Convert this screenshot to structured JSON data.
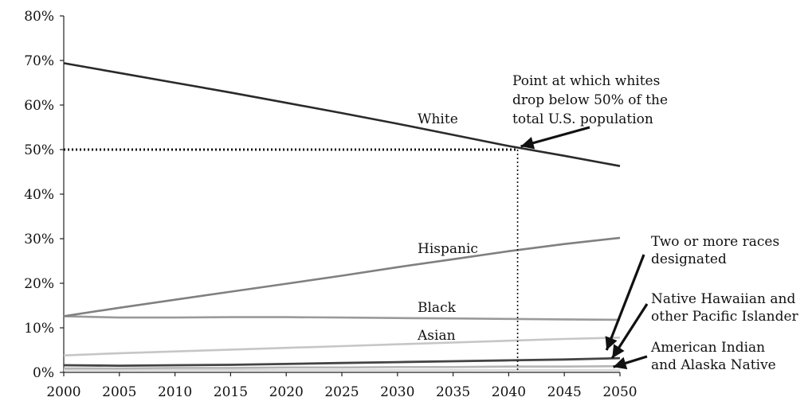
{
  "chart_data": {
    "type": "line",
    "title": "",
    "xlabel": "",
    "ylabel": "",
    "x": [
      2000,
      2005,
      2010,
      2015,
      2020,
      2025,
      2030,
      2035,
      2040,
      2045,
      2050
    ],
    "xlim": [
      2000,
      2050
    ],
    "ylim": [
      0,
      80
    ],
    "y_ticks": [
      "0%",
      "10%",
      "20%",
      "30%",
      "40%",
      "50%",
      "60%",
      "70%",
      "80%"
    ],
    "x_ticks": [
      "2000",
      "2005",
      "2010",
      "2015",
      "2020",
      "2025",
      "2030",
      "2035",
      "2040",
      "2045",
      "2050"
    ],
    "grid": false,
    "legend": "none",
    "series": [
      {
        "name": "White",
        "color": "#2a2a2a",
        "values": [
          69.4,
          67.2,
          65.0,
          62.8,
          60.5,
          58.2,
          55.8,
          53.3,
          50.8,
          48.6,
          46.3
        ]
      },
      {
        "name": "Hispanic",
        "color": "#808080",
        "values": [
          12.6,
          14.5,
          16.3,
          18.1,
          19.9,
          21.7,
          23.6,
          25.4,
          27.2,
          28.8,
          30.2
        ]
      },
      {
        "name": "Black",
        "color": "#9a9a9a",
        "values": [
          12.6,
          12.3,
          12.3,
          12.4,
          12.4,
          12.3,
          12.2,
          12.1,
          12.0,
          11.9,
          11.8
        ]
      },
      {
        "name": "Asian",
        "color": "#c6c6c6",
        "values": [
          3.8,
          4.3,
          4.7,
          5.1,
          5.5,
          5.9,
          6.3,
          6.7,
          7.1,
          7.5,
          7.8
        ]
      },
      {
        "name": "Two or more races designated",
        "color": "#444444",
        "values": [
          1.6,
          1.5,
          1.6,
          1.7,
          1.9,
          2.1,
          2.3,
          2.5,
          2.7,
          2.9,
          3.2
        ]
      },
      {
        "name": "Native Hawaiian and other Pacific Islander",
        "color": "#b5b5b5",
        "values": [
          0.9,
          0.9,
          1.0,
          1.0,
          1.1,
          1.1,
          1.2,
          1.2,
          1.3,
          1.3,
          1.4
        ]
      },
      {
        "name": "American Indian and Alaska Native",
        "color": "#d9d9d9",
        "values": [
          0.5,
          0.5,
          0.5,
          0.5,
          0.5,
          0.5,
          0.5,
          0.5,
          0.5,
          0.5,
          0.5
        ]
      }
    ],
    "annotations": [
      {
        "id": "crossover",
        "lines": [
          "Point at which whites",
          "drop below 50% of the",
          "total U.S. population"
        ],
        "x": 2040.8,
        "y": 50
      },
      {
        "id": "two-or-more",
        "lines": [
          "Two or more races",
          "designated"
        ]
      },
      {
        "id": "native-hawaiian",
        "lines": [
          "Native Hawaiian and",
          "other Pacific Islander"
        ]
      },
      {
        "id": "american-indian",
        "lines": [
          "American Indian",
          "and Alaska Native"
        ]
      }
    ]
  }
}
